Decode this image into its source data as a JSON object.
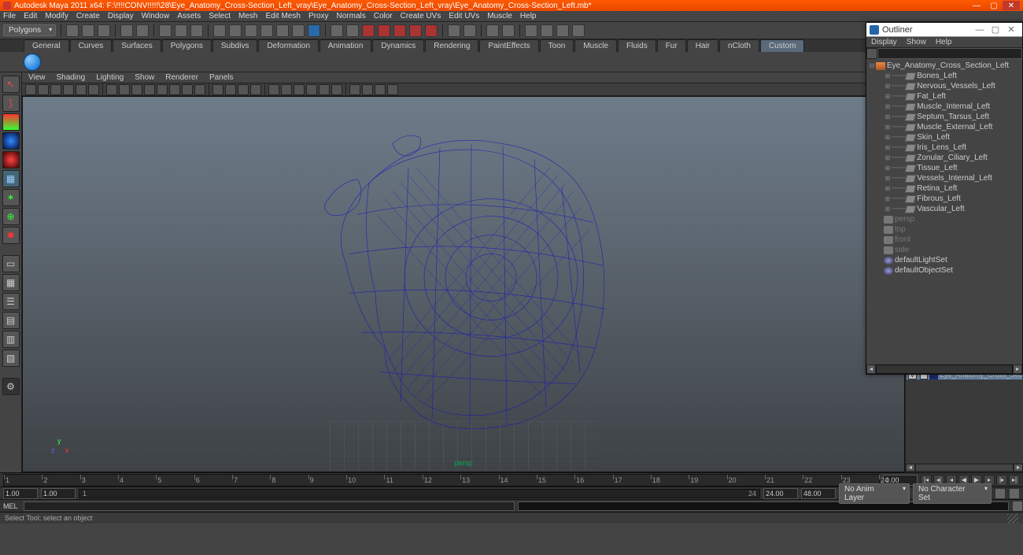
{
  "title": "Autodesk Maya 2011 x64: F:\\!!!!CONV!!!!!\\28\\Eye_Anatomy_Cross-Section_Left_vray\\Eye_Anatomy_Cross-Section_Left_vray\\Eye_Anatomy_Cross-Section_Left.mb*",
  "mainMenu": [
    "File",
    "Edit",
    "Modify",
    "Create",
    "Display",
    "Window",
    "Assets",
    "Select",
    "Mesh",
    "Edit Mesh",
    "Proxy",
    "Normals",
    "Color",
    "Create UVs",
    "Edit UVs",
    "Muscle",
    "Help"
  ],
  "modeDropdown": "Polygons",
  "shelfTabs": [
    "General",
    "Curves",
    "Surfaces",
    "Polygons",
    "Subdivs",
    "Deformation",
    "Animation",
    "Dynamics",
    "Rendering",
    "PaintEffects",
    "Toon",
    "Muscle",
    "Fluids",
    "Fur",
    "Hair",
    "nCloth",
    "Custom"
  ],
  "activeShelf": "Custom",
  "viewMenu": [
    "View",
    "Shading",
    "Lighting",
    "Show",
    "Renderer",
    "Panels"
  ],
  "perspLabel": "persp",
  "axis": {
    "x": "x",
    "y": "y",
    "z": "z"
  },
  "outliner": {
    "title": "Outliner",
    "menu": [
      "Display",
      "Show",
      "Help"
    ],
    "root": "Eye_Anatomy_Cross_Section_Left",
    "children": [
      "Bones_Left",
      "Nervous_Vessels_Left",
      "Fat_Left",
      "Muscle_Internal_Left",
      "Septum_Tarsus_Left",
      "Muscle_External_Left",
      "Skin_Left",
      "Iris_Lens_Left",
      "Zonular_Ciliary_Left",
      "Tissue_Left",
      "Vessels_Internal_Left",
      "Retina_Left",
      "Fibrous_Left",
      "Vascular_Left"
    ],
    "cameras": [
      "persp",
      "top",
      "front",
      "side"
    ],
    "sets": [
      "defaultLightSet",
      "defaultObjectSet"
    ]
  },
  "layerItem": {
    "vis": "V",
    "name": "Eye_Anatomy_Cross_Sec"
  },
  "time": {
    "ticks": [
      1,
      2,
      3,
      4,
      5,
      6,
      7,
      8,
      9,
      10,
      11,
      12,
      13,
      14,
      15,
      16,
      17,
      18,
      19,
      20,
      21,
      22,
      23,
      24
    ],
    "current": "0.00",
    "rangeStart": "1.00",
    "rangeStartInner": "1.00",
    "rangeFrom": "1",
    "rangeTo": "24",
    "rangeEnd": "24.00",
    "rangeEndOuter": "48.00",
    "animLayer": "No Anim Layer",
    "charSet": "No Character Set"
  },
  "cmdLabel": "MEL",
  "helpLine": "Select Tool: select an object",
  "colors": {
    "wire": "#1818b8",
    "orange": "#ff5a00"
  }
}
